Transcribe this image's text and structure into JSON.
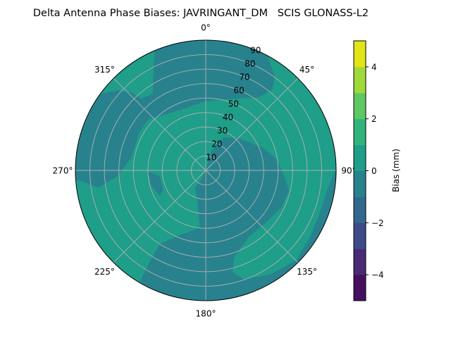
{
  "chart_data": {
    "type": "polar-contour",
    "title": "Delta Antenna Phase Biases: JAVRINGANT_DM   SCIS GLONASS-L2",
    "theta_direction": "clockwise",
    "theta_zero": "top",
    "theta_ticks": [
      "0°",
      "45°",
      "90°",
      "135°",
      "180°",
      "225°",
      "270°",
      "315°"
    ],
    "theta_tick_values": [
      0,
      45,
      90,
      135,
      180,
      225,
      270,
      315
    ],
    "r_ticks": [
      "10",
      "20",
      "30",
      "40",
      "50",
      "60",
      "70",
      "80",
      "90"
    ],
    "r_tick_values": [
      10,
      20,
      30,
      40,
      50,
      60,
      70,
      80,
      90
    ],
    "rlim": [
      0,
      90
    ],
    "grid": true,
    "colorbar": {
      "label": "Bias (mm)",
      "levels": [
        -5,
        -4,
        -3,
        -2,
        -1,
        0,
        1,
        2,
        3,
        4,
        5
      ],
      "ticks": [
        "−4",
        "−2",
        "0",
        "2",
        "4"
      ],
      "tick_values": [
        -4,
        -2,
        0,
        2,
        4
      ],
      "colormap": "viridis",
      "band_colors": [
        "#46105f",
        "#482a75",
        "#3e4a89",
        "#32688e",
        "#27828e",
        "#1f9e89",
        "#30b47b",
        "#5ec962",
        "#9fda3a",
        "#e2e418"
      ],
      "placement": "right"
    },
    "visible_bands": [
      {
        "range": [
          -1,
          0
        ],
        "color": "#27828e"
      },
      {
        "range": [
          0,
          1
        ],
        "color": "#1f9e89"
      }
    ]
  }
}
